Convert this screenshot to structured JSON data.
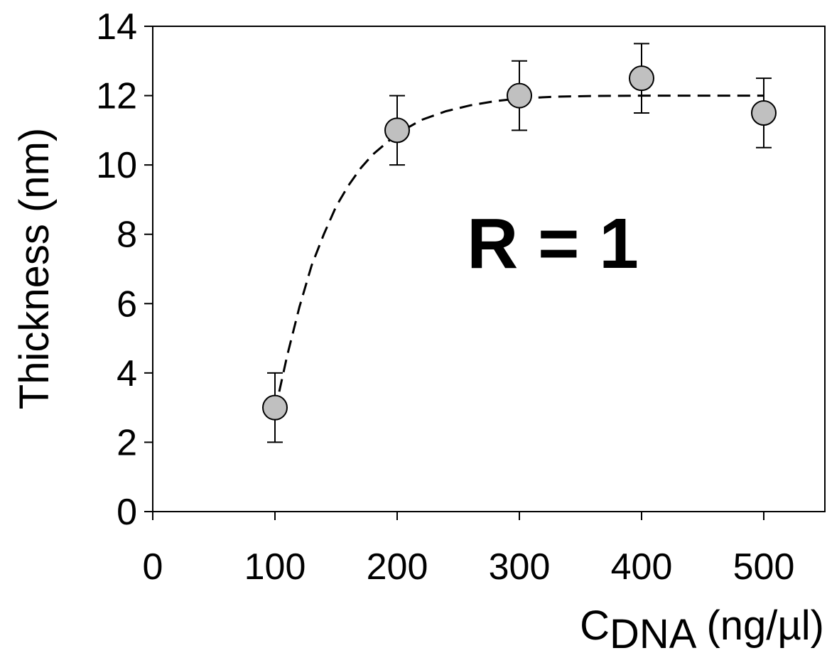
{
  "chart_data": {
    "type": "scatter",
    "title": "",
    "xlabel": {
      "main": "C",
      "subscript": "DNA",
      "unit": "(ng/µl)"
    },
    "ylabel": "Thickness (nm)",
    "xlim": [
      0,
      550
    ],
    "ylim": [
      0,
      14
    ],
    "x_ticks": [
      "0",
      "100",
      "200",
      "300",
      "400",
      "500"
    ],
    "y_ticks": [
      "0",
      "2",
      "4",
      "6",
      "8",
      "10",
      "12",
      "14"
    ],
    "grid": false,
    "annotation": "R = 1",
    "series": [
      {
        "x": [
          100,
          200,
          300,
          400,
          500
        ],
        "y": [
          3,
          11,
          12,
          12.5,
          11.5
        ],
        "error": [
          1,
          1,
          1,
          1,
          1
        ],
        "marker_color": "#c0c0c0"
      }
    ],
    "fit_curve": {
      "style": "dashed",
      "x": [
        100,
        110,
        120,
        130,
        140,
        150,
        160,
        170,
        180,
        190,
        200,
        220,
        240,
        260,
        280,
        300,
        330,
        360,
        400,
        450,
        500
      ],
      "y": [
        2.9,
        4.5,
        5.9,
        7.1,
        8.0,
        8.8,
        9.4,
        9.9,
        10.3,
        10.6,
        10.9,
        11.3,
        11.55,
        11.72,
        11.84,
        11.92,
        11.97,
        11.99,
        12.0,
        12.0,
        12.0
      ]
    }
  }
}
